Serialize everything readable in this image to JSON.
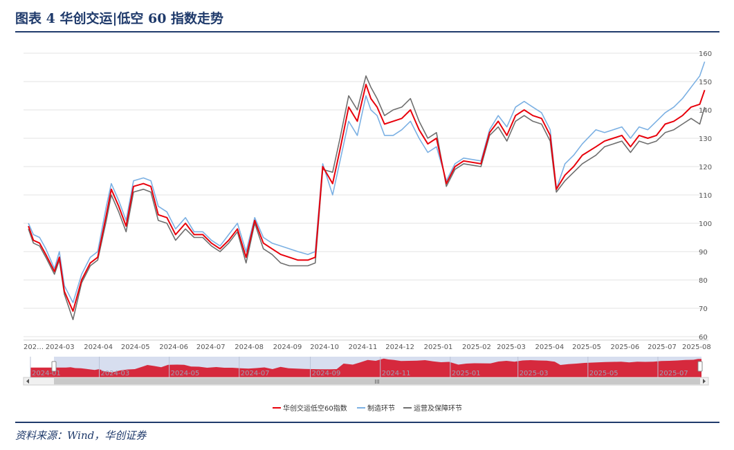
{
  "figure": {
    "title": "图表 4    华创交运|低空 60 指数走势",
    "source": "资料来源：Wind，华创证券"
  },
  "colors": {
    "index": "#e8000b",
    "manufacturing": "#7bb0e3",
    "operations": "#6e6e6e",
    "accent": "#1f3a6b",
    "zoom_fill": "#d61f33"
  },
  "chart_data": {
    "type": "line",
    "title": "",
    "xlabel": "",
    "ylabel": "",
    "ylim": [
      60,
      160
    ],
    "yticks": [
      60,
      70,
      80,
      90,
      100,
      110,
      120,
      130,
      140,
      150,
      160
    ],
    "grid": true,
    "legend_position": "bottom-center",
    "x_ticks": [
      "202…",
      "2024-03",
      "2024-04",
      "2024-05",
      "2024-06",
      "2024-07",
      "2024-08",
      "2024-09",
      "2024-10",
      "2024-11",
      "2024-12",
      "2025-01",
      "2025-02",
      "2025-03",
      "2025-04",
      "2025-05",
      "2025-06",
      "2025-07",
      "2025-08"
    ],
    "slider_ticks": [
      "2024-01",
      "2024-03",
      "2024-05",
      "2024-07",
      "2024-09",
      "2024-11",
      "2025-01",
      "2025-03",
      "2025-05",
      "2025-07"
    ],
    "dates": [
      "2024-02-05",
      "2024-02-09",
      "2024-02-14",
      "2024-02-19",
      "2024-02-26",
      "2024-03-01",
      "2024-03-05",
      "2024-03-12",
      "2024-03-19",
      "2024-03-26",
      "2024-04-01",
      "2024-04-08",
      "2024-04-12",
      "2024-04-18",
      "2024-04-24",
      "2024-04-30",
      "2024-05-08",
      "2024-05-14",
      "2024-05-20",
      "2024-05-27",
      "2024-06-03",
      "2024-06-11",
      "2024-06-18",
      "2024-06-25",
      "2024-07-02",
      "2024-07-09",
      "2024-07-16",
      "2024-07-23",
      "2024-07-30",
      "2024-08-06",
      "2024-08-13",
      "2024-08-20",
      "2024-08-27",
      "2024-09-03",
      "2024-09-10",
      "2024-09-18",
      "2024-09-24",
      "2024-09-30",
      "2024-10-08",
      "2024-10-14",
      "2024-10-21",
      "2024-10-28",
      "2024-11-04",
      "2024-11-08",
      "2024-11-13",
      "2024-11-19",
      "2024-11-26",
      "2024-12-03",
      "2024-12-10",
      "2024-12-17",
      "2024-12-24",
      "2024-12-31",
      "2025-01-08",
      "2025-01-15",
      "2025-01-22",
      "2025-02-05",
      "2025-02-12",
      "2025-02-19",
      "2025-02-26",
      "2025-03-05",
      "2025-03-12",
      "2025-03-19",
      "2025-03-26",
      "2025-04-02",
      "2025-04-07",
      "2025-04-14",
      "2025-04-21",
      "2025-04-28",
      "2025-05-09",
      "2025-05-16",
      "2025-05-23",
      "2025-05-30",
      "2025-06-06",
      "2025-06-13",
      "2025-06-20",
      "2025-06-27",
      "2025-07-04",
      "2025-07-11",
      "2025-07-18",
      "2025-07-25",
      "2025-08-01",
      "2025-08-05"
    ],
    "series": [
      {
        "name": "华创交运低空60指数",
        "color": "#e8000b",
        "values": [
          99,
          94,
          93,
          89,
          83,
          88,
          76,
          69,
          80,
          86,
          88,
          103,
          112,
          106,
          99,
          113,
          114,
          113,
          103,
          102,
          96,
          100,
          96,
          96,
          93,
          91,
          94,
          98,
          88,
          101,
          93,
          91,
          89,
          88,
          87,
          87,
          88,
          120,
          114,
          126,
          141,
          136,
          149,
          144,
          141,
          135,
          136,
          137,
          140,
          133,
          128,
          130,
          114,
          120,
          122,
          121,
          132,
          136,
          131,
          138,
          140,
          138,
          137,
          131,
          112,
          117,
          120,
          124,
          127,
          129,
          130,
          131,
          127,
          131,
          130,
          131,
          135,
          136,
          138,
          141,
          142,
          147
        ]
      },
      {
        "name": "制造环节",
        "color": "#7bb0e3",
        "values": [
          100,
          96,
          95,
          91,
          84,
          90,
          78,
          72,
          82,
          88,
          90,
          106,
          114,
          108,
          101,
          115,
          116,
          115,
          106,
          104,
          98,
          102,
          97,
          97,
          94,
          92,
          96,
          100,
          90,
          102,
          95,
          93,
          92,
          91,
          90,
          89,
          90,
          121,
          110,
          122,
          136,
          131,
          145,
          140,
          138,
          131,
          131,
          133,
          136,
          130,
          125,
          127,
          115,
          121,
          123,
          122,
          133,
          138,
          134,
          141,
          143,
          141,
          139,
          133,
          112,
          121,
          124,
          128,
          133,
          132,
          133,
          134,
          130,
          134,
          133,
          136,
          139,
          141,
          144,
          148,
          152,
          157
        ]
      },
      {
        "name": "运营及保障环节",
        "color": "#6e6e6e",
        "values": [
          98,
          93,
          92,
          88,
          82,
          87,
          75,
          66,
          79,
          85,
          87,
          101,
          110,
          104,
          97,
          111,
          112,
          111,
          101,
          100,
          94,
          98,
          95,
          95,
          92,
          90,
          93,
          97,
          86,
          100,
          91,
          89,
          86,
          85,
          85,
          85,
          86,
          119,
          118,
          130,
          145,
          140,
          152,
          148,
          144,
          138,
          140,
          141,
          144,
          136,
          130,
          132,
          113,
          119,
          121,
          120,
          131,
          134,
          129,
          136,
          138,
          136,
          135,
          129,
          111,
          115,
          118,
          121,
          124,
          127,
          128,
          129,
          125,
          129,
          128,
          129,
          132,
          133,
          135,
          137,
          135,
          141
        ]
      }
    ],
    "legend": [
      "华创交运低空60指数",
      "制造环节",
      "运营及保障环节"
    ],
    "zoom_slider": {
      "range_start": "2024-02",
      "range_end": "2025-08",
      "scroll_label": "III"
    }
  }
}
